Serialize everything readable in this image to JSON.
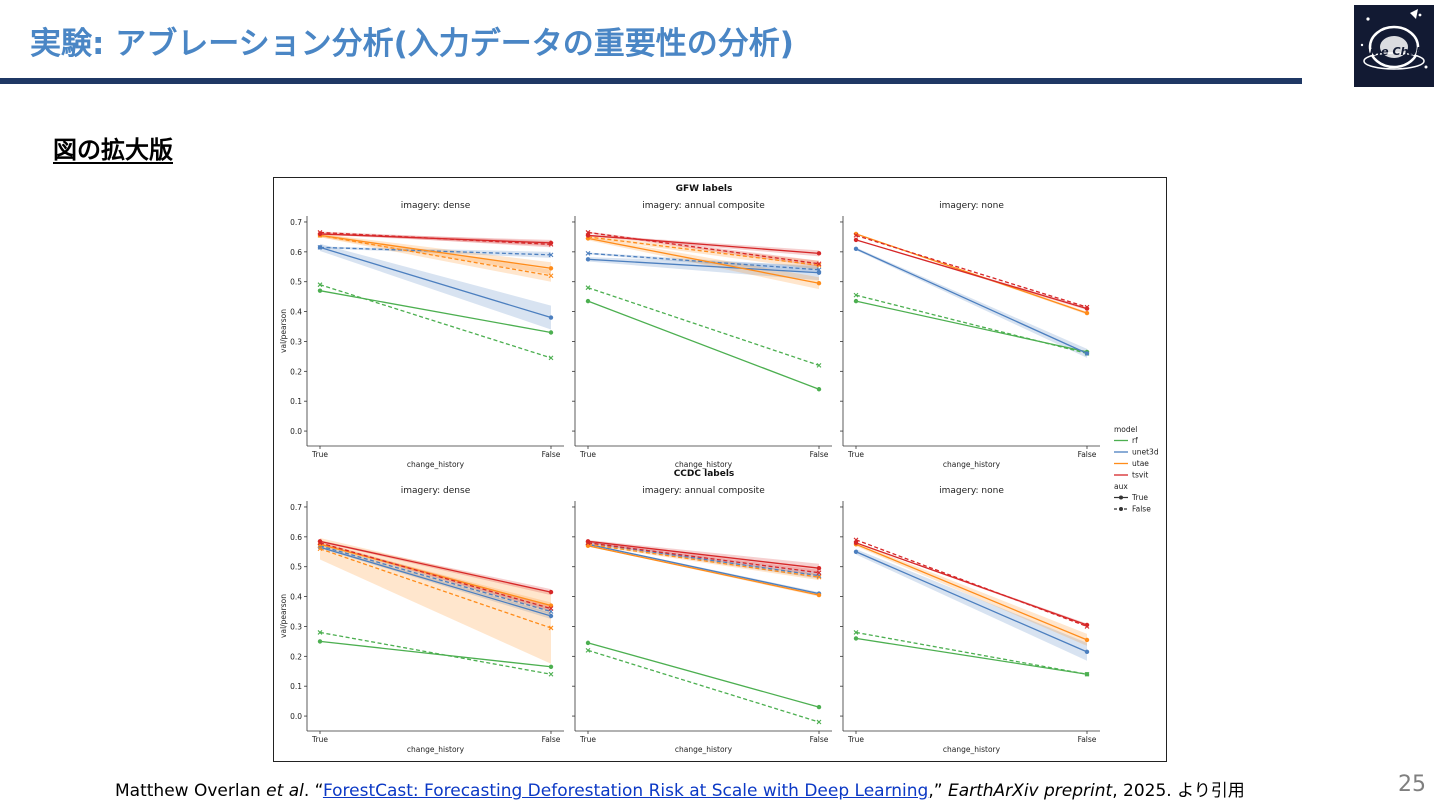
{
  "slide": {
    "title": "実験: アブレーション分析(入力データの重要性の分析)",
    "section_heading": "図の拡大版",
    "page_number": "25",
    "logo_text": "Solafune Challenge"
  },
  "citation": {
    "author": "Matthew Overlan ",
    "etal": "et al",
    "open": ". “",
    "link_text": "ForestCast: Forecasting Deforestation Risk at Scale with Deep Learning",
    "close": ",” ",
    "venue": "EarthArXiv preprint",
    "tail": ", 2025. より引用"
  },
  "chart_data": {
    "type": "line",
    "row_titles": [
      "GFW labels",
      "CCDC labels"
    ],
    "panel_titles": [
      "imagery: dense",
      "imagery: annual composite",
      "imagery: none"
    ],
    "xlabel": "change_history",
    "ylabel": "val/pearson",
    "x": [
      "True",
      "False"
    ],
    "ylim": [
      -0.05,
      0.72
    ],
    "yticks": [
      "0.0",
      "0.1",
      "0.2",
      "0.3",
      "0.4",
      "0.5",
      "0.6",
      "0.7"
    ],
    "legend": {
      "position": "right",
      "model_title": "model",
      "aux_title": "aux",
      "models": [
        "rf",
        "unet3d",
        "utae",
        "tsvit"
      ],
      "aux": [
        "True",
        "False"
      ]
    },
    "colors": {
      "rf": "#4caf50",
      "unet3d": "#4c7fbf",
      "utae": "#ff8c1a",
      "tsvit": "#d62728"
    },
    "panels": [
      {
        "row": 0,
        "col": 0,
        "series": [
          {
            "model": "rf",
            "aux": "True",
            "values": [
              0.47,
              0.33
            ],
            "band": 0
          },
          {
            "model": "rf",
            "aux": "False",
            "values": [
              0.49,
              0.245
            ],
            "band": 0
          },
          {
            "model": "unet3d",
            "aux": "True",
            "values": [
              0.615,
              0.38
            ],
            "band": 0.04
          },
          {
            "model": "unet3d",
            "aux": "False",
            "values": [
              0.615,
              0.59
            ],
            "band": 0.01
          },
          {
            "model": "utae",
            "aux": "True",
            "values": [
              0.655,
              0.545
            ],
            "band": 0.02
          },
          {
            "model": "utae",
            "aux": "False",
            "values": [
              0.655,
              0.52
            ],
            "band": 0.02
          },
          {
            "model": "tsvit",
            "aux": "True",
            "values": [
              0.66,
              0.63
            ],
            "band": 0.01
          },
          {
            "model": "tsvit",
            "aux": "False",
            "values": [
              0.665,
              0.625
            ],
            "band": 0.01
          }
        ]
      },
      {
        "row": 0,
        "col": 1,
        "series": [
          {
            "model": "rf",
            "aux": "True",
            "values": [
              0.435,
              0.14
            ],
            "band": 0
          },
          {
            "model": "rf",
            "aux": "False",
            "values": [
              0.48,
              0.22
            ],
            "band": 0
          },
          {
            "model": "unet3d",
            "aux": "True",
            "values": [
              0.575,
              0.53
            ],
            "band": 0.025
          },
          {
            "model": "unet3d",
            "aux": "False",
            "values": [
              0.595,
              0.54
            ],
            "band": 0.01
          },
          {
            "model": "utae",
            "aux": "True",
            "values": [
              0.645,
              0.495
            ],
            "band": 0.02
          },
          {
            "model": "utae",
            "aux": "False",
            "values": [
              0.65,
              0.555
            ],
            "band": 0.015
          },
          {
            "model": "tsvit",
            "aux": "True",
            "values": [
              0.655,
              0.595
            ],
            "band": 0.01
          },
          {
            "model": "tsvit",
            "aux": "False",
            "values": [
              0.665,
              0.56
            ],
            "band": 0.01
          }
        ]
      },
      {
        "row": 0,
        "col": 2,
        "series": [
          {
            "model": "rf",
            "aux": "True",
            "values": [
              0.435,
              0.265
            ],
            "band": 0
          },
          {
            "model": "rf",
            "aux": "False",
            "values": [
              0.455,
              0.26
            ],
            "band": 0
          },
          {
            "model": "unet3d",
            "aux": "True",
            "values": [
              0.61,
              0.26
            ],
            "band": 0.015
          },
          {
            "model": "utae",
            "aux": "True",
            "values": [
              0.66,
              0.395
            ],
            "band": 0.005
          },
          {
            "model": "tsvit",
            "aux": "True",
            "values": [
              0.64,
              0.41
            ],
            "band": 0.005
          },
          {
            "model": "tsvit",
            "aux": "False",
            "values": [
              0.655,
              0.415
            ],
            "band": 0
          }
        ]
      },
      {
        "row": 1,
        "col": 0,
        "series": [
          {
            "model": "rf",
            "aux": "True",
            "values": [
              0.25,
              0.165
            ],
            "band": 0
          },
          {
            "model": "rf",
            "aux": "False",
            "values": [
              0.28,
              0.14
            ],
            "band": 0
          },
          {
            "model": "unet3d",
            "aux": "True",
            "values": [
              0.565,
              0.335
            ],
            "band": 0.01
          },
          {
            "model": "unet3d",
            "aux": "False",
            "values": [
              0.57,
              0.35
            ],
            "band": 0.01
          },
          {
            "model": "utae",
            "aux": "True",
            "values": [
              0.575,
              0.37
            ],
            "band": 0.01
          },
          {
            "model": "utae",
            "aux": "False",
            "values": [
              0.56,
              0.295
            ],
            "band": 0.12
          },
          {
            "model": "tsvit",
            "aux": "True",
            "values": [
              0.585,
              0.415
            ],
            "band": 0.01
          },
          {
            "model": "tsvit",
            "aux": "False",
            "values": [
              0.58,
              0.36
            ],
            "band": 0.01
          }
        ]
      },
      {
        "row": 1,
        "col": 1,
        "series": [
          {
            "model": "rf",
            "aux": "True",
            "values": [
              0.245,
              0.03
            ],
            "band": 0
          },
          {
            "model": "rf",
            "aux": "False",
            "values": [
              0.22,
              -0.02
            ],
            "band": 0
          },
          {
            "model": "unet3d",
            "aux": "True",
            "values": [
              0.575,
              0.41
            ],
            "band": 0.005
          },
          {
            "model": "unet3d",
            "aux": "False",
            "values": [
              0.58,
              0.47
            ],
            "band": 0.01
          },
          {
            "model": "utae",
            "aux": "True",
            "values": [
              0.57,
              0.405
            ],
            "band": 0.005
          },
          {
            "model": "utae",
            "aux": "False",
            "values": [
              0.575,
              0.465
            ],
            "band": 0.01
          },
          {
            "model": "tsvit",
            "aux": "True",
            "values": [
              0.585,
              0.495
            ],
            "band": 0.015
          },
          {
            "model": "tsvit",
            "aux": "False",
            "values": [
              0.58,
              0.48
            ],
            "band": 0.01
          }
        ]
      },
      {
        "row": 1,
        "col": 2,
        "series": [
          {
            "model": "rf",
            "aux": "True",
            "values": [
              0.26,
              0.14
            ],
            "band": 0
          },
          {
            "model": "rf",
            "aux": "False",
            "values": [
              0.28,
              0.14
            ],
            "band": 0
          },
          {
            "model": "unet3d",
            "aux": "True",
            "values": [
              0.55,
              0.215
            ],
            "band": 0.03
          },
          {
            "model": "utae",
            "aux": "True",
            "values": [
              0.575,
              0.255
            ],
            "band": 0.02
          },
          {
            "model": "tsvit",
            "aux": "True",
            "values": [
              0.58,
              0.305
            ],
            "band": 0.005
          },
          {
            "model": "tsvit",
            "aux": "False",
            "values": [
              0.59,
              0.3
            ],
            "band": 0
          }
        ]
      }
    ]
  }
}
